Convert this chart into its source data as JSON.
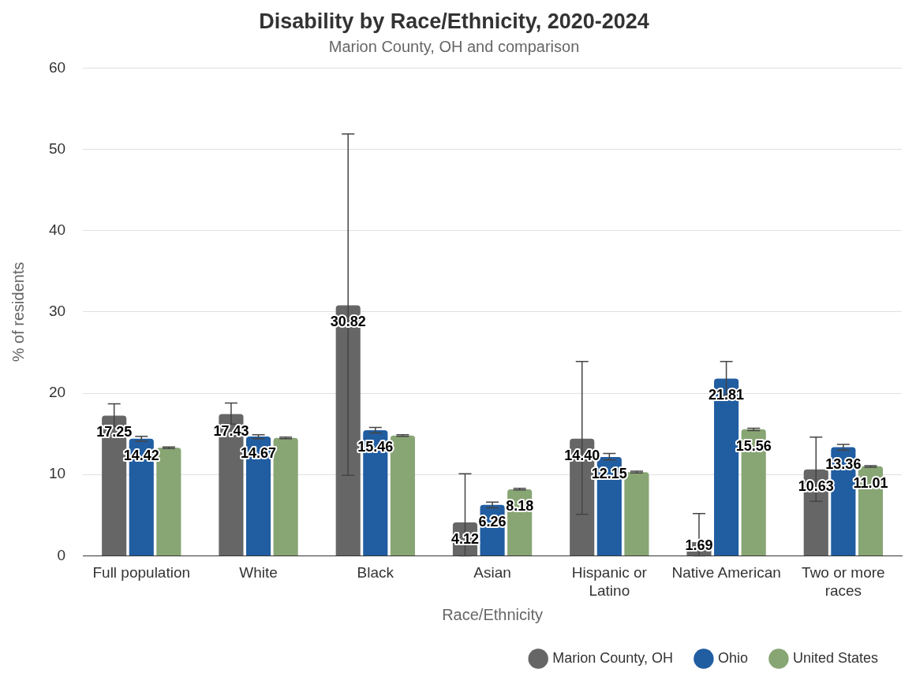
{
  "chart_data": {
    "type": "bar",
    "title": "Disability by Race/Ethnicity, 2020-2024",
    "subtitle": "Marion County, OH and comparison",
    "xlabel": "Race/Ethnicity",
    "ylabel": "% of residents",
    "categories": [
      "Full population",
      "White",
      "Black",
      "Asian",
      "Hispanic or Latino",
      "Native American",
      "Two or more races"
    ],
    "series": [
      {
        "name": "Marion County, OH",
        "color": "#666666",
        "values": [
          17.25,
          17.43,
          30.82,
          4.12,
          14.4,
          1.69,
          10.63
        ],
        "value_labels": [
          "17.25",
          "17.43",
          "30.82",
          "4.12",
          "14.40",
          "1.69",
          "10.63"
        ],
        "errors": [
          [
            15.9,
            18.7
          ],
          [
            16.2,
            18.8
          ],
          [
            9.9,
            51.9
          ],
          [
            0,
            10.1
          ],
          [
            5.1,
            23.9
          ],
          [
            0,
            5.2
          ],
          [
            6.7,
            14.6
          ]
        ]
      },
      {
        "name": "Ohio",
        "color": "#215da1",
        "values": [
          14.42,
          14.67,
          15.46,
          6.26,
          12.15,
          21.81,
          13.36
        ],
        "value_labels": [
          "14.42",
          "14.67",
          "15.46",
          "6.26",
          "12.15",
          "21.81",
          "13.36"
        ],
        "errors": [
          [
            14.1,
            14.7
          ],
          [
            14.4,
            14.9
          ],
          [
            15.1,
            15.8
          ],
          [
            5.9,
            6.6
          ],
          [
            11.8,
            12.6
          ],
          [
            19.8,
            23.9
          ],
          [
            13.0,
            13.7
          ]
        ]
      },
      {
        "name": "United States",
        "color": "#88a574",
        "values": [
          13.3,
          14.5,
          14.8,
          8.18,
          10.3,
          15.56,
          11.01
        ],
        "value_labels": [
          null,
          null,
          null,
          "8.18",
          null,
          "15.56",
          "11.01"
        ],
        "errors": [
          [
            13.2,
            13.4
          ],
          [
            14.4,
            14.6
          ],
          [
            14.7,
            14.9
          ],
          [
            8.1,
            8.3
          ],
          [
            10.2,
            10.4
          ],
          [
            15.4,
            15.7
          ],
          [
            10.9,
            11.1
          ]
        ]
      }
    ],
    "ylim": [
      0,
      60
    ],
    "yticks": [
      0,
      10,
      20,
      30,
      40,
      50,
      60
    ],
    "grid": "y",
    "legend": "bottom right"
  }
}
